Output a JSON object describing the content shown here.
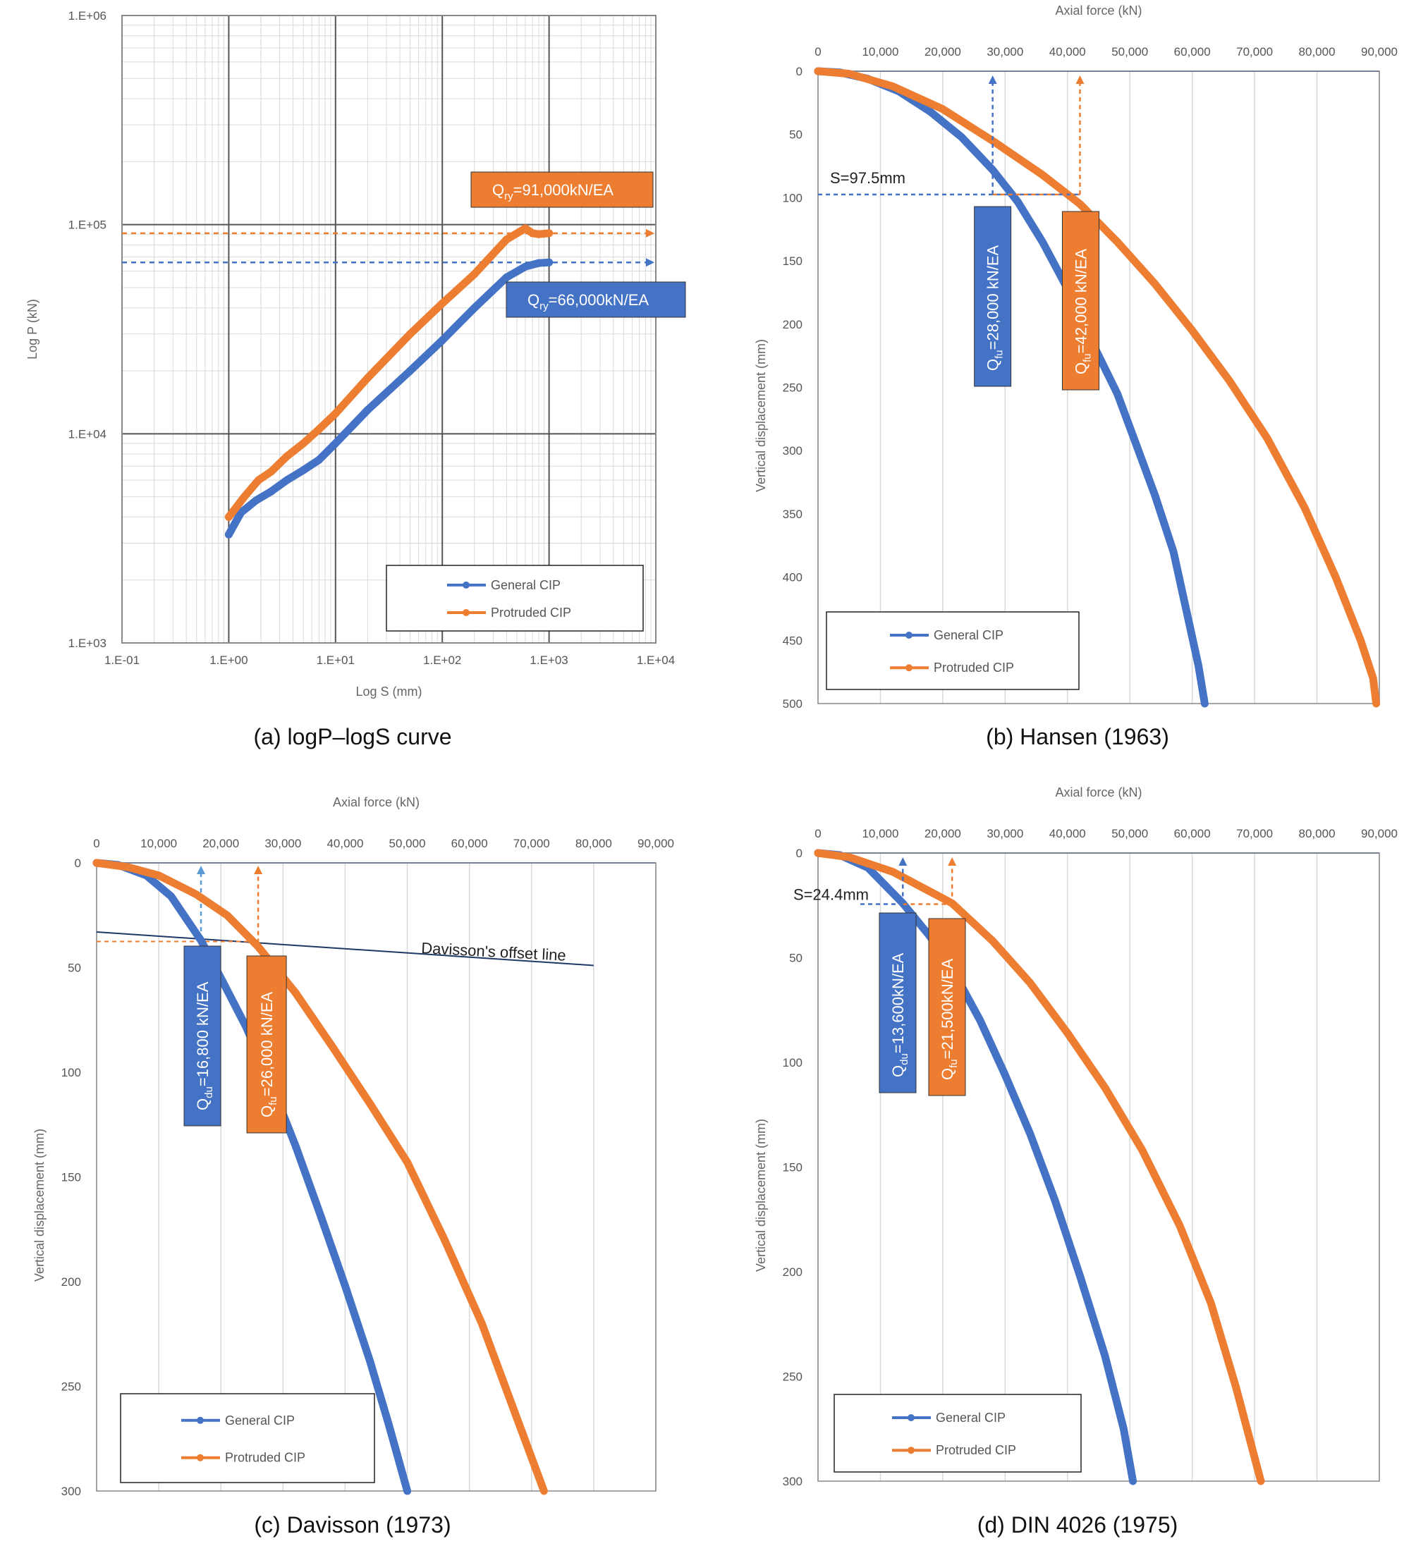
{
  "colors": {
    "general": "#4472c4",
    "protruded": "#ed7d31",
    "grid": "#d9d9d9",
    "frame": "#888888",
    "offset_line": "#1f3864"
  },
  "chart_data": [
    {
      "id": "a",
      "type": "line",
      "caption": "(a)  logP–logS  curve",
      "xlabel": "Log S (mm)",
      "ylabel": "Log P (kN)",
      "xscale": "log",
      "yscale": "log",
      "xlim": [
        0.1,
        10000
      ],
      "ylim": [
        1000,
        1000000
      ],
      "xticks": [
        "1.E-01",
        "1.E+00",
        "1.E+01",
        "1.E+02",
        "1.E+03",
        "1.E+04"
      ],
      "yticks": [
        "1.E+03",
        "1.E+04",
        "1.E+05",
        "1.E+06"
      ],
      "grid": true,
      "legend": "bottom-right",
      "series": [
        {
          "name": "General CIP",
          "x": [
            1,
            1.3,
            1.8,
            2.5,
            3.5,
            5,
            7,
            10,
            20,
            50,
            100,
            200,
            400,
            600,
            800,
            1000
          ],
          "y": [
            3300,
            4200,
            4800,
            5300,
            6000,
            6700,
            7500,
            9000,
            13000,
            20000,
            28000,
            40000,
            56000,
            63000,
            65500,
            66000
          ]
        },
        {
          "name": "Protruded CIP",
          "x": [
            1,
            1.4,
            1.9,
            2.5,
            3.5,
            5,
            7,
            10,
            20,
            50,
            100,
            200,
            400,
            600,
            700,
            800,
            1000
          ],
          "y": [
            4000,
            5000,
            6000,
            6600,
            7800,
            9000,
            10500,
            12500,
            18500,
            30000,
            42000,
            58000,
            85000,
            96000,
            91000,
            90000,
            91000
          ]
        }
      ],
      "annotations": [
        {
          "label": "=91,000kN/EA",
          "sub": "ry",
          "color": "protruded",
          "value": 91000
        },
        {
          "label": "=66,000kN/EA",
          "sub": "ry",
          "color": "general",
          "value": 66000
        }
      ]
    },
    {
      "id": "b",
      "type": "line",
      "caption": "(b)  Hansen  (1963)",
      "xlabel": "Axial force (kN)",
      "ylabel": "Vertical displacement (mm)",
      "xlim": [
        0,
        90000
      ],
      "ylim": [
        0,
        500
      ],
      "xticks": [
        "0",
        "10,000",
        "20,000",
        "30,000",
        "40,000",
        "50,000",
        "60,000",
        "70,000",
        "80,000",
        "90,000"
      ],
      "yticks": [
        "0",
        "50",
        "100",
        "150",
        "200",
        "250",
        "300",
        "350",
        "400",
        "450",
        "500"
      ],
      "grid": true,
      "legend": "bottom-left",
      "series": [
        {
          "name": "General CIP",
          "x": [
            0,
            3500,
            8000,
            13000,
            18000,
            23000,
            28000,
            32000,
            36000,
            40000,
            44000,
            48000,
            51000,
            54000,
            57000,
            59000,
            61000,
            62000
          ],
          "y": [
            0,
            1,
            6,
            16,
            32,
            52,
            78,
            103,
            135,
            172,
            215,
            255,
            295,
            335,
            380,
            425,
            470,
            500
          ]
        },
        {
          "name": "Protruded CIP",
          "x": [
            0,
            5000,
            12000,
            20000,
            28000,
            36000,
            42000,
            48000,
            54000,
            60000,
            66000,
            72000,
            78000,
            83000,
            87000,
            89000,
            89500
          ],
          "y": [
            0,
            2,
            12,
            30,
            55,
            82,
            105,
            135,
            168,
            205,
            245,
            290,
            345,
            400,
            450,
            480,
            500
          ]
        }
      ],
      "annotations": [
        {
          "label": "S=97.5mm",
          "value": 97.5
        },
        {
          "label": "=28,000  kN/EA",
          "sub": "fu",
          "color": "general",
          "value": 28000
        },
        {
          "label": "=42,000  kN/EA",
          "sub": "fu",
          "color": "protruded",
          "value": 42000
        }
      ]
    },
    {
      "id": "c",
      "type": "line",
      "caption": "(c)  Davisson  (1973)",
      "xlabel": "Axial force (kN)",
      "ylabel": "Vertical displacement (mm)",
      "xlim": [
        0,
        90000
      ],
      "ylim": [
        0,
        300
      ],
      "xticks": [
        "0",
        "10,000",
        "20,000",
        "30,000",
        "40,000",
        "50,000",
        "60,000",
        "70,000",
        "80,000",
        "90,000"
      ],
      "yticks": [
        "0",
        "50",
        "100",
        "150",
        "200",
        "250",
        "300"
      ],
      "grid": true,
      "legend": "bottom-left",
      "series": [
        {
          "name": "General CIP",
          "x": [
            0,
            3500,
            8000,
            12000,
            16800,
            20000,
            24000,
            28000,
            32000,
            36000,
            40000,
            44000,
            47000,
            50000
          ],
          "y": [
            0,
            1,
            6,
            16,
            37,
            55,
            78,
            105,
            135,
            168,
            202,
            238,
            268,
            300
          ]
        },
        {
          "name": "Protruded CIP",
          "x": [
            0,
            5000,
            10000,
            16000,
            21000,
            26000,
            32000,
            38000,
            44000,
            50000,
            56000,
            62000,
            67000,
            72000
          ],
          "y": [
            0,
            2,
            6,
            15,
            25,
            40,
            62,
            88,
            115,
            143,
            180,
            220,
            260,
            300
          ]
        }
      ],
      "offset_line": {
        "label": "Davisson's offset line",
        "x": [
          0,
          80000
        ],
        "y": [
          33,
          49
        ]
      },
      "annotations": [
        {
          "label": "=16,800  kN/EA",
          "sub": "du",
          "color": "general",
          "value": 16800
        },
        {
          "label": "=26,000  kN/EA",
          "sub": "fu",
          "color": "protruded",
          "value": 26000
        }
      ]
    },
    {
      "id": "d",
      "type": "line",
      "caption": "(d)  DIN  4026  (1975)",
      "xlabel": "Axial force (kN)",
      "ylabel": "Vertical displacement (mm)",
      "xlim": [
        0,
        90000
      ],
      "ylim": [
        0,
        300
      ],
      "xticks": [
        "0",
        "10,000",
        "20,000",
        "30,000",
        "40,000",
        "50,000",
        "60,000",
        "70,000",
        "80,000",
        "90,000"
      ],
      "yticks": [
        "0",
        "50",
        "100",
        "150",
        "200",
        "250",
        "300"
      ],
      "grid": true,
      "legend": "bottom-left",
      "series": [
        {
          "name": "General CIP",
          "x": [
            0,
            3500,
            8000,
            13600,
            18000,
            22000,
            26000,
            30000,
            34000,
            38000,
            42000,
            46000,
            49000,
            50500
          ],
          "y": [
            0,
            1,
            7,
            24,
            40,
            58,
            80,
            106,
            134,
            166,
            202,
            240,
            275,
            300
          ]
        },
        {
          "name": "Protruded CIP",
          "x": [
            0,
            5000,
            12000,
            21500,
            28000,
            34000,
            40000,
            46000,
            52000,
            58000,
            63000,
            67000,
            71000
          ],
          "y": [
            0,
            2,
            9,
            24,
            42,
            62,
            86,
            112,
            142,
            178,
            215,
            255,
            300
          ]
        }
      ],
      "annotations": [
        {
          "label": "S=24.4mm",
          "value": 24.4
        },
        {
          "label": "=13,600kN/EA",
          "sub": "du",
          "color": "general",
          "value": 13600
        },
        {
          "label": "=21,500kN/EA",
          "sub": "fu",
          "color": "protruded",
          "value": 21500
        }
      ]
    }
  ]
}
